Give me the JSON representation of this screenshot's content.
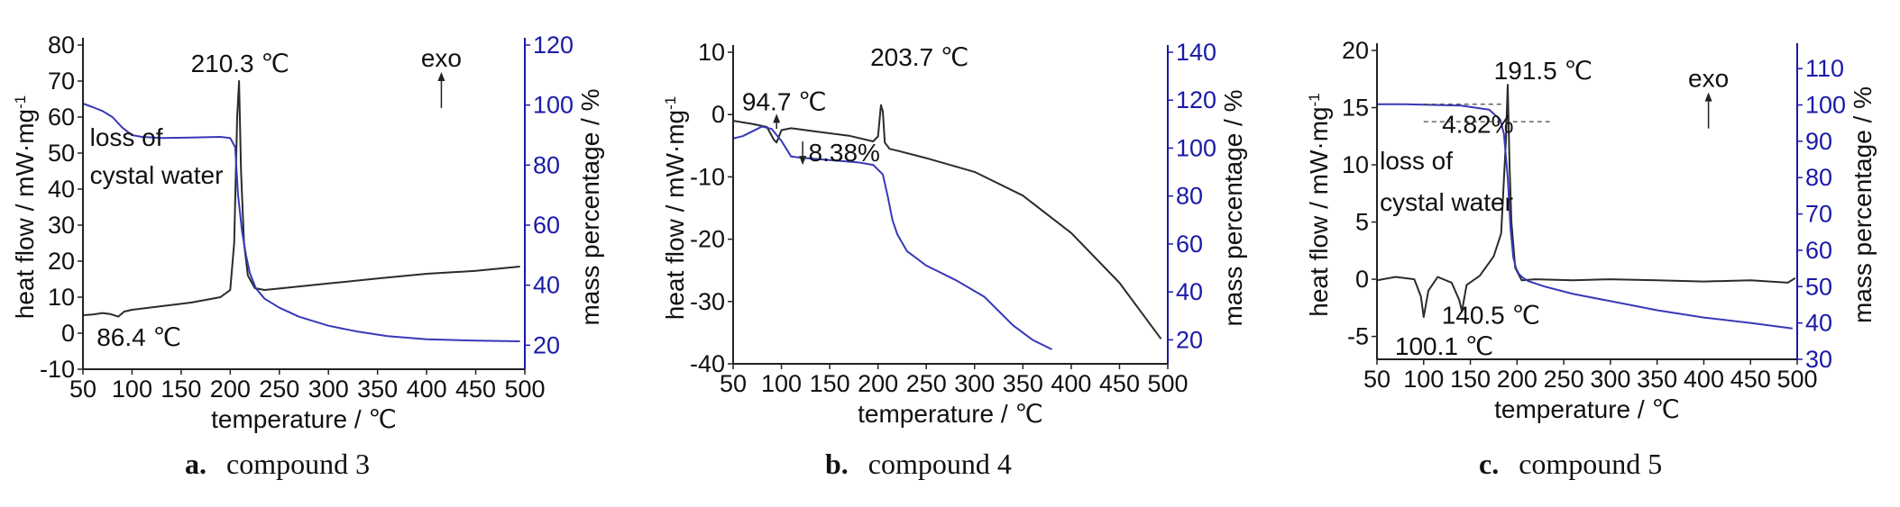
{
  "chart_data": [
    {
      "id": "a",
      "type": "line",
      "caption_letter": "a.",
      "caption_text": "compound 3",
      "xlabel": "temperature / ℃",
      "ylabel_left": "heat flow / mW·mg",
      "ylabel_left_sup": "-1",
      "ylabel_right": "mass percentage / %",
      "xlim": [
        50,
        500
      ],
      "xticks": [
        50,
        100,
        150,
        200,
        250,
        300,
        350,
        400,
        450,
        500
      ],
      "ylim_left": [
        -10,
        80
      ],
      "yticks_left": [
        -10,
        0,
        10,
        20,
        30,
        40,
        50,
        60,
        70,
        80
      ],
      "ylim_right": [
        12,
        120
      ],
      "yticks_right": [
        20,
        40,
        60,
        80,
        100,
        120
      ],
      "series": [
        {
          "axis": "left",
          "color": "#2b2b2b",
          "x": [
            50,
            60,
            70,
            78,
            86,
            92,
            100,
            130,
            160,
            190,
            200,
            204,
            207,
            209,
            211,
            214,
            218,
            225,
            235,
            250,
            300,
            350,
            400,
            450,
            495
          ],
          "y": [
            5.0,
            5.2,
            5.6,
            5.3,
            4.6,
            6.0,
            6.5,
            7.5,
            8.5,
            10.0,
            12.0,
            25.0,
            60.0,
            70.0,
            45.0,
            25.0,
            16.0,
            12.5,
            12.0,
            12.4,
            13.8,
            15.2,
            16.5,
            17.3,
            18.5
          ]
        },
        {
          "axis": "right",
          "color": "#3838b8",
          "x": [
            50,
            60,
            70,
            80,
            90,
            100,
            110,
            130,
            160,
            190,
            200,
            205,
            208,
            212,
            216,
            220,
            226,
            235,
            250,
            270,
            300,
            330,
            360,
            400,
            450,
            495
          ],
          "y": [
            100.5,
            99.3,
            98.0,
            96.0,
            92.5,
            90.0,
            89.4,
            89.0,
            89.2,
            89.4,
            89.0,
            86.0,
            70.0,
            58.0,
            50.0,
            44.0,
            39.0,
            35.5,
            32.5,
            29.5,
            26.5,
            24.5,
            23.0,
            22.0,
            21.5,
            21.3
          ]
        }
      ],
      "annotations": [
        {
          "text": "210.3  ℃",
          "x": 210,
          "y": 72.5,
          "anchor": "middle",
          "axis": "left"
        },
        {
          "text": "86.4  ℃",
          "x": 107,
          "y": -3.5,
          "anchor": "middle",
          "axis": "left"
        },
        {
          "text": "loss of",
          "x": 57,
          "y": 52,
          "anchor": "start",
          "axis": "left"
        },
        {
          "text": "cystal water",
          "x": 57,
          "y": 41.5,
          "anchor": "start",
          "axis": "left"
        },
        {
          "text": "exo",
          "x": 415,
          "y": 74,
          "anchor": "middle",
          "axis": "left",
          "arrow_up": true
        }
      ]
    },
    {
      "id": "b",
      "type": "line",
      "caption_letter": "b.",
      "caption_text": "compound 4",
      "xlabel": "temperature / ℃",
      "ylabel_left": "heat flow / mW·mg",
      "ylabel_left_sup": "-1",
      "ylabel_right": "mass percentage / %",
      "xlim": [
        50,
        500
      ],
      "xticks": [
        50,
        100,
        150,
        200,
        250,
        300,
        350,
        400,
        450,
        500
      ],
      "ylim_left": [
        -40,
        10
      ],
      "yticks_left": [
        -40,
        -30,
        -20,
        -10,
        0,
        10
      ],
      "ylim_right": [
        10,
        140
      ],
      "yticks_right": [
        20,
        40,
        60,
        80,
        100,
        120,
        140
      ],
      "series": [
        {
          "axis": "left",
          "color": "#2b2b2b",
          "x": [
            50,
            70,
            85,
            92,
            95,
            100,
            110,
            140,
            170,
            195,
            200,
            203,
            205,
            207,
            212,
            220,
            250,
            300,
            350,
            400,
            450,
            493
          ],
          "y": [
            -1.0,
            -1.5,
            -2.0,
            -4.0,
            -4.5,
            -2.5,
            -2.2,
            -2.8,
            -3.4,
            -4.3,
            -3.5,
            1.5,
            0.5,
            -4.5,
            -5.5,
            -5.8,
            -7.0,
            -9.2,
            -13.0,
            -19.0,
            -27.0,
            -36.0
          ]
        },
        {
          "axis": "right",
          "color": "#3838b8",
          "x": [
            50,
            60,
            70,
            80,
            90,
            100,
            110,
            120,
            150,
            180,
            195,
            205,
            210,
            215,
            220,
            230,
            250,
            280,
            310,
            340,
            360,
            380
          ],
          "y": [
            104,
            105,
            107,
            109,
            108,
            103,
            96.5,
            96.0,
            95.0,
            94.0,
            93.0,
            89.0,
            80.0,
            70.0,
            64.0,
            57.0,
            51.0,
            45.0,
            38.0,
            26.0,
            20.0,
            16.0
          ]
        }
      ],
      "annotations": [
        {
          "text": "94.7  ℃",
          "x": 103,
          "y": 0.7,
          "anchor": "middle",
          "axis": "left",
          "arrow_to": -2.3
        },
        {
          "text": "203.7  ℃",
          "x": 243,
          "y": 7.8,
          "anchor": "middle",
          "axis": "left"
        },
        {
          "text": "8.38%",
          "x": 128,
          "y": -7.5,
          "anchor": "start",
          "axis": "left",
          "arrow_down_at": 122
        }
      ]
    },
    {
      "id": "c",
      "type": "line",
      "caption_letter": "c.",
      "caption_text": "compound 5",
      "xlabel": "temperature / ℃",
      "ylabel_left": "heat flow / mW·mg",
      "ylabel_left_sup": "-1",
      "ylabel_right": "mass percentage / %",
      "xlim": [
        50,
        500
      ],
      "xticks": [
        50,
        100,
        150,
        200,
        250,
        300,
        350,
        400,
        450,
        500
      ],
      "ylim_left": [
        -7,
        20
      ],
      "yticks_left": [
        -5,
        0,
        5,
        10,
        15,
        20
      ],
      "ylim_right": [
        30,
        115
      ],
      "yticks_right": [
        30,
        40,
        50,
        60,
        70,
        80,
        90,
        100,
        110
      ],
      "series": [
        {
          "axis": "left",
          "color": "#2b2b2b",
          "x": [
            50,
            70,
            90,
            97,
            100,
            105,
            115,
            130,
            138,
            141,
            146,
            160,
            175,
            183,
            188,
            190,
            192,
            194,
            198,
            205,
            220,
            260,
            300,
            350,
            400,
            450,
            490,
            498
          ],
          "y": [
            -0.1,
            0.2,
            0.0,
            -1.5,
            -3.3,
            -1.0,
            0.2,
            -0.3,
            -1.8,
            -2.8,
            -0.5,
            0.3,
            2.0,
            4.0,
            12.0,
            17.0,
            10.0,
            5.0,
            1.0,
            -0.1,
            0.0,
            -0.1,
            0.0,
            -0.1,
            -0.2,
            -0.1,
            -0.3,
            0.1
          ]
        },
        {
          "axis": "right",
          "color": "#3838b8",
          "x": [
            50,
            80,
            110,
            140,
            170,
            182,
            186,
            190,
            193,
            196,
            199,
            202,
            206,
            212,
            230,
            260,
            300,
            350,
            400,
            450,
            495
          ],
          "y": [
            100.2,
            100.2,
            100.0,
            99.8,
            98.7,
            96.0,
            92.0,
            80.0,
            66.0,
            58.0,
            55.0,
            53.5,
            52.5,
            51.5,
            50.0,
            48.0,
            46.0,
            43.5,
            41.5,
            40.0,
            38.5
          ]
        }
      ],
      "annotations": [
        {
          "text": "191.5  ℃",
          "x": 228,
          "y": 17.5,
          "anchor": "middle",
          "axis": "left"
        },
        {
          "text": "4.82%",
          "x": 158,
          "y": 12.8,
          "anchor": "middle",
          "axis": "left"
        },
        {
          "text": "loss of",
          "x": 53,
          "y": 9.6,
          "anchor": "start",
          "axis": "left"
        },
        {
          "text": "cystal water",
          "x": 53,
          "y": 6.0,
          "anchor": "start",
          "axis": "left"
        },
        {
          "text": "100.1  ℃",
          "x": 122,
          "y": -6.6,
          "anchor": "middle",
          "axis": "left"
        },
        {
          "text": "140.5  ℃",
          "x": 172,
          "y": -3.9,
          "anchor": "middle",
          "axis": "left"
        },
        {
          "text": "exo",
          "x": 405,
          "y": 16.8,
          "anchor": "middle",
          "axis": "left",
          "arrow_up": true
        }
      ]
    }
  ]
}
